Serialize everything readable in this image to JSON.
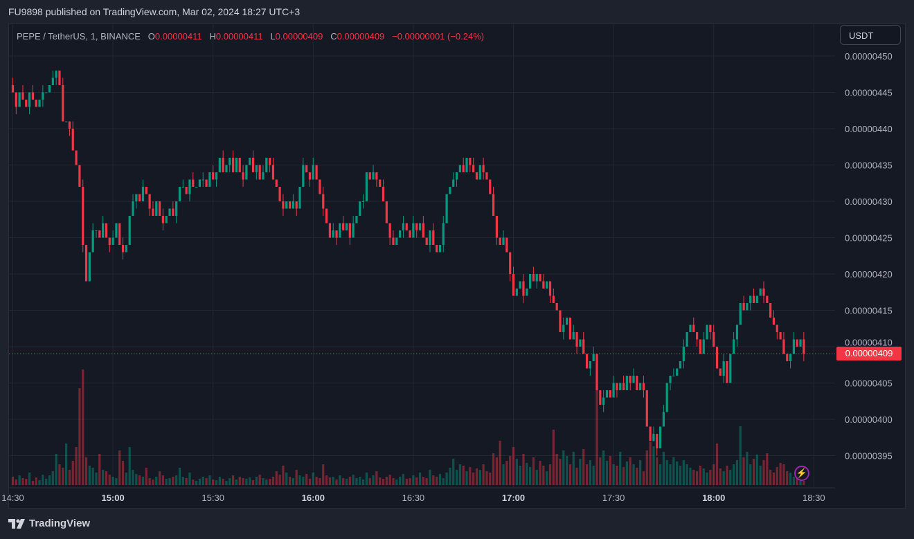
{
  "header": {
    "published": "FU9898 published on TradingView.com, Mar 02, 2024 18:27 UTC+3"
  },
  "legend": {
    "symbol": "PEPE / TetherUS, 1, BINANCE",
    "o_label": "O",
    "o_value": "0.00000411",
    "h_label": "H",
    "h_value": "0.00000411",
    "l_label": "L",
    "l_value": "0.00000409",
    "c_label": "C",
    "c_value": "0.00000409",
    "change": "−0.00000001 (−0.24%)"
  },
  "currency_button": "USDT",
  "last_price_label": "0.00000409",
  "logo_text": "TradingView",
  "icons": {
    "alert": "lightning-icon",
    "logo": "tradingview-logo-icon"
  },
  "colors": {
    "up": "#089981",
    "down": "#f23645",
    "background": "#151924",
    "alert": "#9c27b0"
  },
  "chart_data": {
    "type": "candlestick",
    "interval": "1",
    "start_time": "14:30",
    "ylim": [
      3.92e-06,
      4.51e-06
    ],
    "y_ticks": [
      "0.00000450",
      "0.00000445",
      "0.00000440",
      "0.00000435",
      "0.00000430",
      "0.00000425",
      "0.00000420",
      "0.00000415",
      "0.00000410",
      "0.00000405",
      "0.00000400",
      "0.00000395"
    ],
    "x_ticks": [
      "14:30",
      "15:00",
      "15:30",
      "16:00",
      "16:30",
      "17:00",
      "17:30",
      "18:00",
      "18:30"
    ],
    "bold_x_ticks": [
      "15:00",
      "16:00",
      "17:00",
      "18:00"
    ],
    "grid": true,
    "last_price": 4.09e-06,
    "first_open": 4.46e-06,
    "close": [
      4.45e-06,
      4.43e-06,
      4.45e-06,
      4.44e-06,
      4.43e-06,
      4.45e-06,
      4.44e-06,
      4.43e-06,
      4.44e-06,
      4.45e-06,
      4.45e-06,
      4.46e-06,
      4.47e-06,
      4.48e-06,
      4.46e-06,
      4.41e-06,
      4.41e-06,
      4.4e-06,
      4.37e-06,
      4.35e-06,
      4.32e-06,
      4.24e-06,
      4.19e-06,
      4.23e-06,
      4.26e-06,
      4.26e-06,
      4.25e-06,
      4.27e-06,
      4.25e-06,
      4.24e-06,
      4.25e-06,
      4.27e-06,
      4.24e-06,
      4.23e-06,
      4.24e-06,
      4.28e-06,
      4.3e-06,
      4.31e-06,
      4.3e-06,
      4.32e-06,
      4.31e-06,
      4.29e-06,
      4.28e-06,
      4.3e-06,
      4.28e-06,
      4.27e-06,
      4.28e-06,
      4.29e-06,
      4.28e-06,
      4.3e-06,
      4.32e-06,
      4.32e-06,
      4.31e-06,
      4.33e-06,
      4.32e-06,
      4.32e-06,
      4.33e-06,
      4.33e-06,
      4.32e-06,
      4.34e-06,
      4.33e-06,
      4.34e-06,
      4.36e-06,
      4.34e-06,
      4.35e-06,
      4.36e-06,
      4.34e-06,
      4.36e-06,
      4.34e-06,
      4.33e-06,
      4.35e-06,
      4.36e-06,
      4.34e-06,
      4.35e-06,
      4.33e-06,
      4.34e-06,
      4.36e-06,
      4.35e-06,
      4.33e-06,
      4.32e-06,
      4.3e-06,
      4.29e-06,
      4.3e-06,
      4.29e-06,
      4.3e-06,
      4.29e-06,
      4.32e-06,
      4.35e-06,
      4.34e-06,
      4.33e-06,
      4.35e-06,
      4.33e-06,
      4.31e-06,
      4.29e-06,
      4.27e-06,
      4.25e-06,
      4.26e-06,
      4.25e-06,
      4.27e-06,
      4.26e-06,
      4.27e-06,
      4.25e-06,
      4.27e-06,
      4.28e-06,
      4.3e-06,
      4.3e-06,
      4.34e-06,
      4.33e-06,
      4.34e-06,
      4.33e-06,
      4.32e-06,
      4.3e-06,
      4.27e-06,
      4.25e-06,
      4.24e-06,
      4.25e-06,
      4.26e-06,
      4.27e-06,
      4.26e-06,
      4.25e-06,
      4.27e-06,
      4.26e-06,
      4.27e-06,
      4.25e-06,
      4.24e-06,
      4.26e-06,
      4.24e-06,
      4.23e-06,
      4.24e-06,
      4.27e-06,
      4.31e-06,
      4.32e-06,
      4.33e-06,
      4.34e-06,
      4.35e-06,
      4.34e-06,
      4.36e-06,
      4.35e-06,
      4.34e-06,
      4.33e-06,
      4.35e-06,
      4.34e-06,
      4.33e-06,
      4.31e-06,
      4.28e-06,
      4.25e-06,
      4.24e-06,
      4.25e-06,
      4.23e-06,
      4.2e-06,
      4.17e-06,
      4.18e-06,
      4.19e-06,
      4.17e-06,
      4.18e-06,
      4.2e-06,
      4.19e-06,
      4.2e-06,
      4.19e-06,
      4.18e-06,
      4.19e-06,
      4.17e-06,
      4.16e-06,
      4.15e-06,
      4.12e-06,
      4.13e-06,
      4.14e-06,
      4.11e-06,
      4.12e-06,
      4.1e-06,
      4.11e-06,
      4.09e-06,
      4.07e-06,
      4.08e-06,
      4.09e-06,
      4.04e-06,
      4.02e-06,
      4.03e-06,
      4.04e-06,
      4.03e-06,
      4.05e-06,
      4.04e-06,
      4.05e-06,
      4.04e-06,
      4.06e-06,
      4.05e-06,
      4.06e-06,
      4.04e-06,
      4.05e-06,
      4.04e-06,
      3.99e-06,
      3.97e-06,
      3.98e-06,
      3.96e-06,
      3.99e-06,
      4.01e-06,
      4.05e-06,
      4.06e-06,
      4.06e-06,
      4.07e-06,
      4.08e-06,
      4.1e-06,
      4.12e-06,
      4.13e-06,
      4.12e-06,
      4.11e-06,
      4.09e-06,
      4.11e-06,
      4.13e-06,
      4.12e-06,
      4.1e-06,
      4.07e-06,
      4.06e-06,
      4.08e-06,
      4.05e-06,
      4.09e-06,
      4.11e-06,
      4.13e-06,
      4.16e-06,
      4.15e-06,
      4.16e-06,
      4.17e-06,
      4.16e-06,
      4.17e-06,
      4.18e-06,
      4.17e-06,
      4.16e-06,
      4.14e-06,
      4.13e-06,
      4.12e-06,
      4.11e-06,
      4.09e-06,
      4.08e-06,
      4.09e-06,
      4.11e-06,
      4.1e-06,
      4.11e-06,
      4.09e-06
    ],
    "volume": [
      12,
      8,
      14,
      10,
      9,
      18,
      6,
      11,
      7,
      15,
      9,
      14,
      20,
      45,
      30,
      25,
      60,
      22,
      35,
      55,
      140,
      167,
      40,
      28,
      25,
      18,
      45,
      22,
      20,
      15,
      12,
      10,
      50,
      35,
      18,
      55,
      22,
      16,
      14,
      12,
      25,
      10,
      8,
      12,
      20,
      14,
      9,
      10,
      12,
      14,
      25,
      12,
      10,
      18,
      8,
      6,
      9,
      12,
      10,
      14,
      8,
      7,
      12,
      9,
      6,
      10,
      14,
      8,
      12,
      10,
      9,
      11,
      7,
      12,
      15,
      10,
      8,
      9,
      12,
      20,
      15,
      28,
      18,
      12,
      10,
      22,
      14,
      12,
      16,
      9,
      18,
      12,
      10,
      30,
      14,
      11,
      12,
      8,
      14,
      10,
      9,
      12,
      15,
      10,
      12,
      8,
      18,
      10,
      14,
      20,
      11,
      9,
      12,
      15,
      10,
      8,
      12,
      16,
      9,
      10,
      14,
      11,
      18,
      12,
      10,
      22,
      14,
      12,
      16,
      10,
      18,
      25,
      38,
      22,
      30,
      28,
      20,
      26,
      18,
      24,
      22,
      30,
      20,
      18,
      46,
      40,
      64,
      30,
      35,
      42,
      55,
      38,
      28,
      45,
      32,
      26,
      40,
      22,
      35,
      28,
      20,
      30,
      80,
      45,
      38,
      50,
      42,
      30,
      48,
      25,
      38,
      52,
      30,
      36,
      28,
      160,
      40,
      50,
      35,
      42,
      30,
      28,
      48,
      26,
      34,
      40,
      30,
      25,
      36,
      20,
      50,
      62,
      56,
      40,
      30,
      48,
      36,
      30,
      40,
      34,
      28,
      36,
      30,
      25,
      22,
      20,
      28,
      24,
      18,
      22,
      30,
      60,
      24,
      20,
      28,
      22,
      30,
      36,
      85,
      40,
      48,
      30,
      38,
      44,
      28,
      36,
      46,
      22,
      18,
      26,
      32,
      30,
      20,
      18,
      12,
      10,
      8,
      6
    ]
  }
}
